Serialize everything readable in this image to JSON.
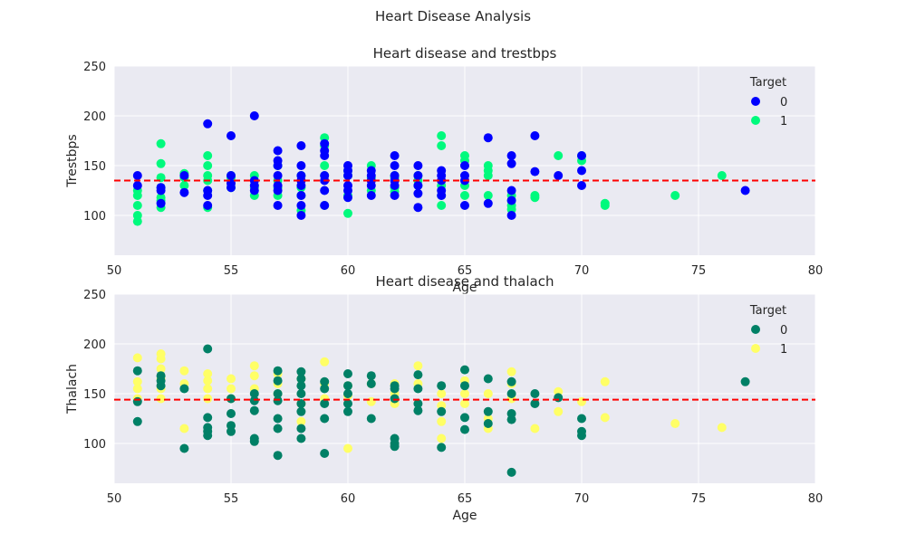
{
  "figure": {
    "suptitle": "Heart Disease Analysis"
  },
  "chart_data": [
    {
      "type": "scatter",
      "title": "Heart disease and trestbps",
      "xlabel": "Age",
      "ylabel": "Trestbps",
      "xlim": [
        50,
        80
      ],
      "ylim": [
        60,
        250
      ],
      "xticks": [
        50,
        55,
        60,
        65,
        70,
        75,
        80
      ],
      "yticks": [
        100,
        150,
        200,
        250
      ],
      "grid": true,
      "reference_line": {
        "y": 135,
        "style": "dashed",
        "color": "#ff0000"
      },
      "legend": {
        "title": "Target",
        "position": "top-right"
      },
      "series": [
        {
          "name": "1",
          "color": "#00fa7d",
          "x": [
            51,
            51,
            51,
            51,
            51,
            52,
            52,
            52,
            52,
            52,
            52,
            52,
            53,
            53,
            53,
            54,
            54,
            54,
            54,
            54,
            54,
            55,
            55,
            55,
            56,
            56,
            56,
            56,
            57,
            57,
            57,
            57,
            58,
            58,
            58,
            58,
            59,
            59,
            59,
            59,
            59,
            60,
            60,
            60,
            60,
            61,
            61,
            61,
            62,
            62,
            62,
            62,
            63,
            63,
            63,
            64,
            64,
            64,
            64,
            64,
            65,
            65,
            65,
            65,
            66,
            66,
            66,
            66,
            67,
            67,
            67,
            67,
            68,
            68,
            69,
            70,
            70,
            71,
            71,
            74,
            76
          ],
          "y": [
            94,
            100,
            110,
            120,
            125,
            108,
            118,
            128,
            138,
            152,
            172,
            115,
            130,
            142,
            138,
            108,
            125,
            140,
            150,
            160,
            135,
            128,
            138,
            140,
            120,
            130,
            140,
            128,
            120,
            128,
            135,
            150,
            105,
            120,
            140,
            128,
            110,
            140,
            150,
            178,
            170,
            102,
            120,
            140,
            145,
            125,
            138,
            150,
            124,
            128,
            138,
            140,
            130,
            135,
            140,
            110,
            120,
            130,
            170,
            180,
            120,
            130,
            155,
            160,
            120,
            140,
            150,
            145,
            106,
            115,
            120,
            110,
            118,
            120,
            160,
            155,
            160,
            110,
            112,
            120,
            140
          ]
        },
        {
          "name": "0",
          "color": "#0000ff",
          "x": [
            51,
            51,
            52,
            52,
            52,
            53,
            53,
            54,
            54,
            54,
            54,
            55,
            55,
            55,
            55,
            56,
            56,
            56,
            56,
            57,
            57,
            57,
            57,
            57,
            57,
            57,
            58,
            58,
            58,
            58,
            58,
            58,
            58,
            58,
            59,
            59,
            59,
            59,
            59,
            59,
            59,
            60,
            60,
            60,
            60,
            60,
            60,
            61,
            61,
            61,
            61,
            61,
            62,
            62,
            62,
            62,
            62,
            62,
            63,
            63,
            63,
            63,
            63,
            64,
            64,
            64,
            64,
            64,
            65,
            65,
            65,
            65,
            66,
            66,
            67,
            67,
            67,
            67,
            67,
            68,
            68,
            69,
            70,
            70,
            70,
            77
          ],
          "y": [
            130,
            140,
            112,
            125,
            128,
            123,
            140,
            110,
            120,
            125,
            192,
            128,
            132,
            140,
            180,
            125,
            130,
            135,
            200,
            110,
            125,
            130,
            140,
            150,
            155,
            165,
            100,
            110,
            120,
            130,
            135,
            140,
            150,
            170,
            110,
            125,
            135,
            140,
            160,
            165,
            172,
            118,
            125,
            130,
            140,
            145,
            150,
            120,
            130,
            135,
            140,
            145,
            120,
            130,
            135,
            140,
            150,
            160,
            108,
            122,
            130,
            140,
            150,
            120,
            125,
            135,
            140,
            145,
            110,
            135,
            140,
            150,
            112,
            178,
            100,
            115,
            125,
            152,
            160,
            144,
            180,
            140,
            130,
            145,
            160,
            125
          ]
        }
      ]
    },
    {
      "type": "scatter",
      "title": "Heart disease and thalach",
      "xlabel": "Age",
      "ylabel": "Thalach",
      "xlim": [
        50,
        80
      ],
      "ylim": [
        60,
        250
      ],
      "xticks": [
        50,
        55,
        60,
        65,
        70,
        75,
        80
      ],
      "yticks": [
        100,
        150,
        200,
        250
      ],
      "grid": true,
      "reference_line": {
        "y": 144,
        "style": "dashed",
        "color": "#ff0000"
      },
      "legend": {
        "title": "Target",
        "position": "top-right"
      },
      "series": [
        {
          "name": "1",
          "color": "#ffff66",
          "x": [
            51,
            51,
            51,
            51,
            52,
            52,
            52,
            52,
            52,
            52,
            53,
            53,
            53,
            54,
            54,
            54,
            54,
            55,
            55,
            55,
            56,
            56,
            56,
            57,
            57,
            57,
            58,
            58,
            58,
            59,
            59,
            59,
            60,
            60,
            60,
            61,
            61,
            62,
            62,
            62,
            63,
            63,
            64,
            64,
            64,
            64,
            65,
            65,
            65,
            66,
            66,
            66,
            67,
            67,
            67,
            68,
            69,
            69,
            70,
            71,
            71,
            74,
            76
          ],
          "y": [
            186,
            162,
            155,
            145,
            190,
            185,
            175,
            165,
            155,
            145,
            173,
            160,
            115,
            170,
            163,
            155,
            145,
            165,
            155,
            145,
            178,
            168,
            155,
            170,
            160,
            150,
            165,
            140,
            122,
            182,
            160,
            145,
            158,
            148,
            95,
            160,
            142,
            160,
            150,
            140,
            178,
            160,
            150,
            138,
            122,
            105,
            163,
            150,
            140,
            150,
            125,
            115,
            172,
            160,
            145,
            115,
            152,
            132,
            142,
            162,
            126,
            120,
            116
          ]
        },
        {
          "name": "0",
          "color": "#008066",
          "x": [
            51,
            51,
            51,
            52,
            52,
            52,
            53,
            53,
            54,
            54,
            54,
            54,
            54,
            55,
            55,
            55,
            55,
            56,
            56,
            56,
            56,
            56,
            57,
            57,
            57,
            57,
            57,
            57,
            57,
            58,
            58,
            58,
            58,
            58,
            58,
            58,
            58,
            59,
            59,
            59,
            59,
            59,
            60,
            60,
            60,
            60,
            60,
            61,
            61,
            61,
            62,
            62,
            62,
            62,
            62,
            62,
            63,
            63,
            63,
            63,
            64,
            64,
            64,
            65,
            65,
            65,
            65,
            66,
            66,
            66,
            67,
            67,
            67,
            67,
            67,
            68,
            68,
            69,
            70,
            70,
            70,
            77
          ],
          "y": [
            173,
            142,
            122,
            168,
            163,
            158,
            155,
            95,
            195,
            126,
            116,
            112,
            108,
            145,
            130,
            118,
            112,
            150,
            143,
            133,
            105,
            102,
            173,
            163,
            150,
            143,
            125,
            115,
            88,
            172,
            165,
            158,
            150,
            140,
            132,
            115,
            105,
            162,
            155,
            140,
            125,
            90,
            170,
            158,
            150,
            140,
            132,
            168,
            160,
            125,
            155,
            145,
            105,
            100,
            97,
            158,
            169,
            155,
            140,
            133,
            158,
            132,
            96,
            174,
            158,
            126,
            114,
            165,
            132,
            120,
            162,
            150,
            130,
            124,
            71,
            150,
            140,
            146,
            125,
            112,
            108,
            162
          ]
        }
      ]
    }
  ]
}
